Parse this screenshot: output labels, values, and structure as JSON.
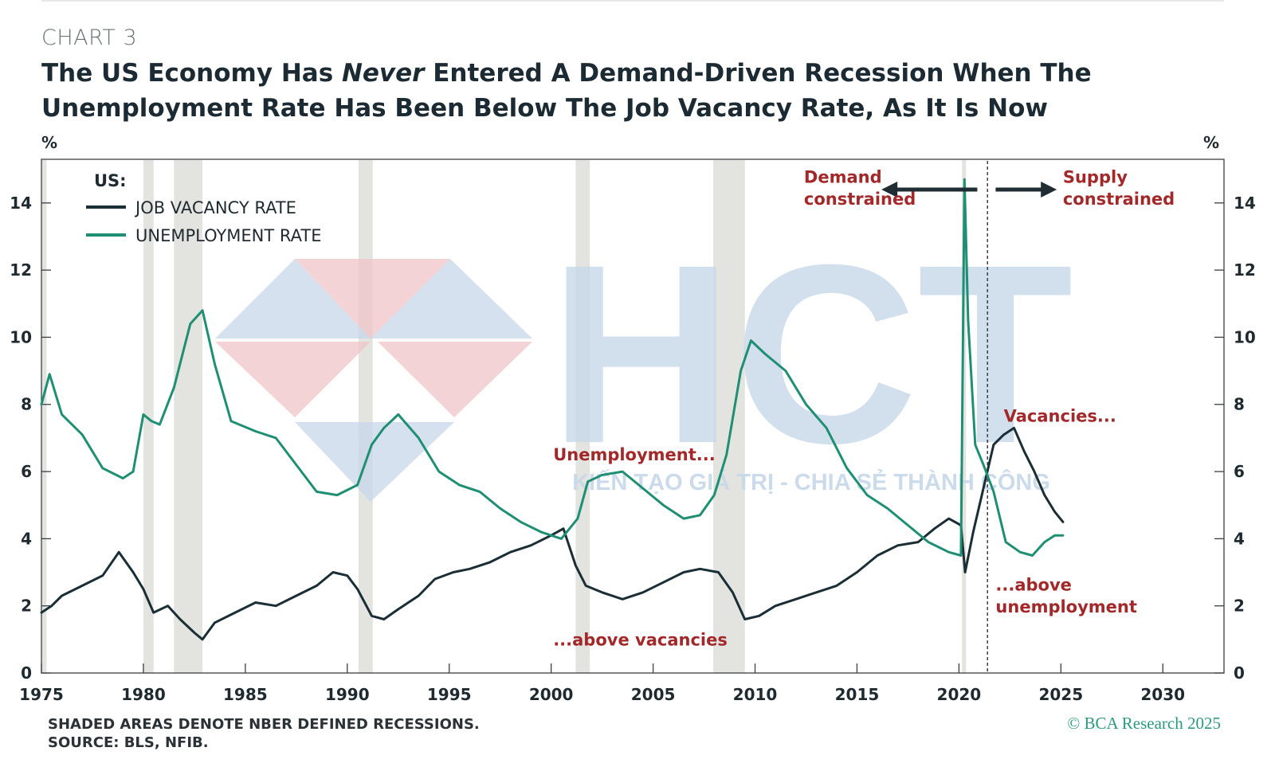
{
  "header": {
    "chart_number": "CHART 3",
    "title_part1": "The US Economy Has ",
    "title_emph": "Never",
    "title_part2": " Entered A Demand-Driven Recession When The Unemployment Rate Has Been Below The Job Vacancy Rate, As It Is Now"
  },
  "footer": {
    "note": "SHADED AREAS DENOTE NBER DEFINED RECESSIONS.",
    "source": "SOURCE: BLS, NFIB.",
    "copyright": "© BCA Research 2025"
  },
  "watermark": {
    "logo_text": "HCT",
    "tagline": "KIẾN TẠO GIÁ TRỊ - CHIA SẺ THÀNH CÔNG"
  },
  "colors": {
    "vacancy": "#1a2e35",
    "unemployment": "#1f8f74",
    "annotation": "#a3282a",
    "recession": "#e3e3df"
  },
  "chart_data": {
    "type": "line",
    "title": "The US Economy Has Never Entered A Demand-Driven Recession When The Unemployment Rate Has Been Below The Job Vacancy Rate, As It Is Now",
    "xlim": [
      1975,
      2033
    ],
    "ylim": [
      0,
      15.3
    ],
    "x_ticks": [
      1975,
      1980,
      1985,
      1990,
      1995,
      2000,
      2005,
      2010,
      2015,
      2020,
      2025,
      2030
    ],
    "y_ticks": [
      0,
      2,
      4,
      6,
      8,
      10,
      12,
      14
    ],
    "ylabel_left": "%",
    "ylabel_right": "%",
    "grid": false,
    "legend_title": "US:",
    "legend_position": "top-left",
    "recessions": [
      [
        1975.0,
        1975.25
      ],
      [
        1980.0,
        1980.5
      ],
      [
        1981.5,
        1982.9
      ],
      [
        1990.55,
        1991.25
      ],
      [
        2001.2,
        2001.9
      ],
      [
        2007.95,
        2009.5
      ],
      [
        2020.15,
        2020.35
      ]
    ],
    "divider_x": 2021.4,
    "series": [
      {
        "name": "JOB VACANCY RATE",
        "x": [
          1975,
          1975.5,
          1976,
          1977,
          1978,
          1978.8,
          1979.5,
          1980,
          1980.5,
          1981.2,
          1981.8,
          1982.5,
          1982.9,
          1983.5,
          1984.5,
          1985.5,
          1986.5,
          1987.5,
          1988.5,
          1989.3,
          1990,
          1990.5,
          1991.2,
          1991.8,
          1992.5,
          1993.5,
          1994.3,
          1995.2,
          1996,
          1997,
          1998,
          1999,
          2000,
          2000.6,
          2001.2,
          2001.7,
          2002.5,
          2003.5,
          2004.5,
          2005.5,
          2006.5,
          2007.3,
          2008.2,
          2008.9,
          2009.5,
          2010.2,
          2011,
          2012,
          2013,
          2014,
          2015,
          2016,
          2017,
          2018,
          2018.8,
          2019.5,
          2020.1,
          2020.3,
          2020.7,
          2021.2,
          2021.7,
          2022.2,
          2022.7,
          2023.2,
          2023.7,
          2024.2,
          2024.7,
          2025.1
        ],
        "values": [
          1.8,
          2.0,
          2.3,
          2.6,
          2.9,
          3.6,
          3.0,
          2.5,
          1.8,
          2.0,
          1.6,
          1.2,
          1.0,
          1.5,
          1.8,
          2.1,
          2.0,
          2.3,
          2.6,
          3.0,
          2.9,
          2.5,
          1.7,
          1.6,
          1.9,
          2.3,
          2.8,
          3.0,
          3.1,
          3.3,
          3.6,
          3.8,
          4.1,
          4.3,
          3.2,
          2.6,
          2.4,
          2.2,
          2.4,
          2.7,
          3.0,
          3.1,
          3.0,
          2.4,
          1.6,
          1.7,
          2.0,
          2.2,
          2.4,
          2.6,
          3.0,
          3.5,
          3.8,
          3.9,
          4.3,
          4.6,
          4.4,
          3.0,
          4.2,
          5.5,
          6.8,
          7.1,
          7.3,
          6.6,
          6.0,
          5.3,
          4.8,
          4.5
        ]
      },
      {
        "name": "UNEMPLOYMENT RATE",
        "x": [
          1975,
          1975.4,
          1976,
          1977,
          1978,
          1979,
          1979.5,
          1980,
          1980.4,
          1980.8,
          1981.5,
          1982.3,
          1982.9,
          1983.5,
          1984.3,
          1985.5,
          1986.5,
          1987.5,
          1988.5,
          1989.5,
          1990.5,
          1991.2,
          1991.8,
          1992.5,
          1993.5,
          1994.5,
          1995.5,
          1996.5,
          1997.5,
          1998.5,
          1999.5,
          2000.5,
          2001.3,
          2001.8,
          2002.5,
          2003.5,
          2004.5,
          2005.5,
          2006.5,
          2007.3,
          2008,
          2008.6,
          2009.3,
          2009.8,
          2010.5,
          2011.5,
          2012.5,
          2013.5,
          2014.5,
          2015.5,
          2016.5,
          2017.5,
          2018.5,
          2019.5,
          2020.1,
          2020.27,
          2020.45,
          2020.8,
          2021.2,
          2021.7,
          2022.3,
          2023,
          2023.6,
          2024.2,
          2024.7,
          2025.1
        ],
        "values": [
          8.0,
          8.9,
          7.7,
          7.1,
          6.1,
          5.8,
          6.0,
          7.7,
          7.5,
          7.4,
          8.5,
          10.4,
          10.8,
          9.2,
          7.5,
          7.2,
          7.0,
          6.2,
          5.4,
          5.3,
          5.6,
          6.8,
          7.3,
          7.7,
          7.0,
          6.0,
          5.6,
          5.4,
          4.9,
          4.5,
          4.2,
          4.0,
          4.6,
          5.7,
          5.9,
          6.0,
          5.5,
          5.0,
          4.6,
          4.7,
          5.3,
          6.5,
          9.0,
          9.9,
          9.5,
          9.0,
          8.0,
          7.3,
          6.1,
          5.3,
          4.9,
          4.4,
          3.9,
          3.6,
          3.5,
          14.7,
          10.5,
          6.8,
          6.2,
          5.4,
          3.9,
          3.6,
          3.5,
          3.9,
          4.1,
          4.1
        ]
      }
    ],
    "annotations": [
      {
        "text": "Demand",
        "x": 2012.4,
        "y": 14.6,
        "anchor": "start"
      },
      {
        "text": "constrained",
        "x": 2012.4,
        "y": 13.95,
        "anchor": "start"
      },
      {
        "text": "Supply",
        "x": 2025.1,
        "y": 14.6,
        "anchor": "start"
      },
      {
        "text": "constrained",
        "x": 2025.1,
        "y": 13.95,
        "anchor": "start"
      },
      {
        "text": "Unemployment...",
        "x": 2000.1,
        "y": 6.33,
        "anchor": "start"
      },
      {
        "text": "...above vacancies",
        "x": 2000.1,
        "y": 0.82,
        "anchor": "start"
      },
      {
        "text": "Vacancies...",
        "x": 2022.2,
        "y": 7.48,
        "anchor": "start"
      },
      {
        "text": "...above",
        "x": 2021.8,
        "y": 2.45,
        "anchor": "start"
      },
      {
        "text": "unemployment",
        "x": 2021.8,
        "y": 1.8,
        "anchor": "start"
      }
    ],
    "arrows": [
      {
        "direction": "left",
        "x_from": 2020.9,
        "x_to": 2016.2,
        "y": 14.4
      },
      {
        "direction": "right",
        "x_from": 2021.8,
        "x_to": 2024.8,
        "y": 14.4
      }
    ]
  }
}
